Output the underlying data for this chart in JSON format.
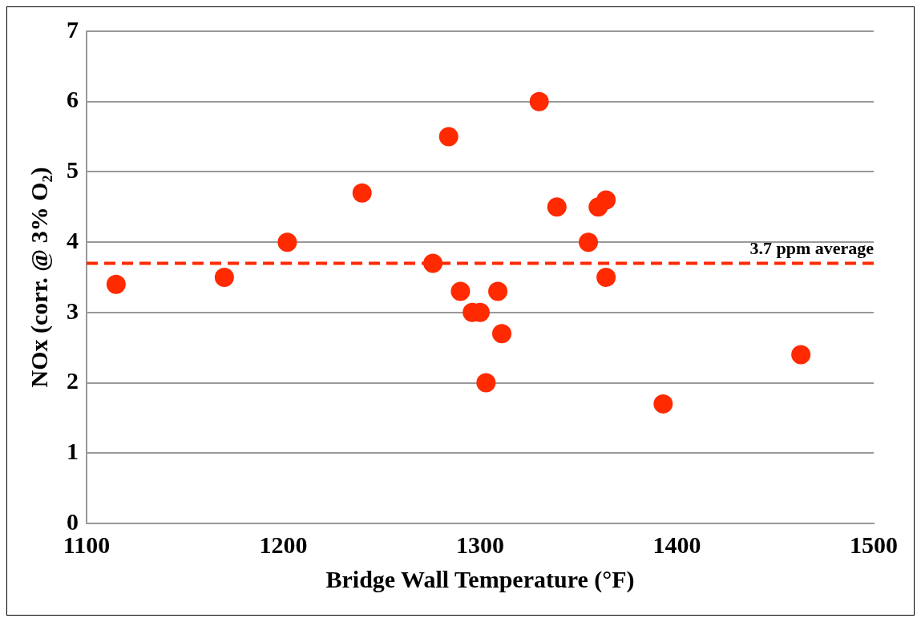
{
  "chart_data": {
    "type": "scatter",
    "xlabel": "Bridge Wall Temperature (°F)",
    "ylabel": "NOx (corr. @ 3% O₂)",
    "x": [
      1115,
      1170,
      1202,
      1240,
      1276,
      1284,
      1290,
      1296,
      1300,
      1303,
      1309,
      1311,
      1330,
      1339,
      1355,
      1360,
      1364,
      1364,
      1393,
      1463
    ],
    "series": [
      {
        "color": "#ff2a00",
        "values": [
          3.4,
          3.5,
          4.0,
          4.7,
          3.7,
          5.5,
          3.3,
          3.0,
          3.0,
          2.0,
          3.3,
          2.7,
          6.0,
          4.5,
          4.0,
          4.5,
          4.6,
          3.5,
          1.7,
          2.4
        ]
      }
    ],
    "xlim": [
      1100,
      1500
    ],
    "xticks": [
      1100,
      1200,
      1300,
      1400,
      1500
    ],
    "ylim": [
      0,
      7
    ],
    "yticks": [
      0,
      1,
      2,
      3,
      4,
      5,
      6,
      7
    ],
    "grid": "y",
    "legend": false,
    "marker": "circle",
    "ref_lines": [
      {
        "axis": "y",
        "value": 3.7,
        "label": "3.7 ppm average",
        "color": "#ff2a00",
        "line_style": "dashed"
      }
    ]
  }
}
